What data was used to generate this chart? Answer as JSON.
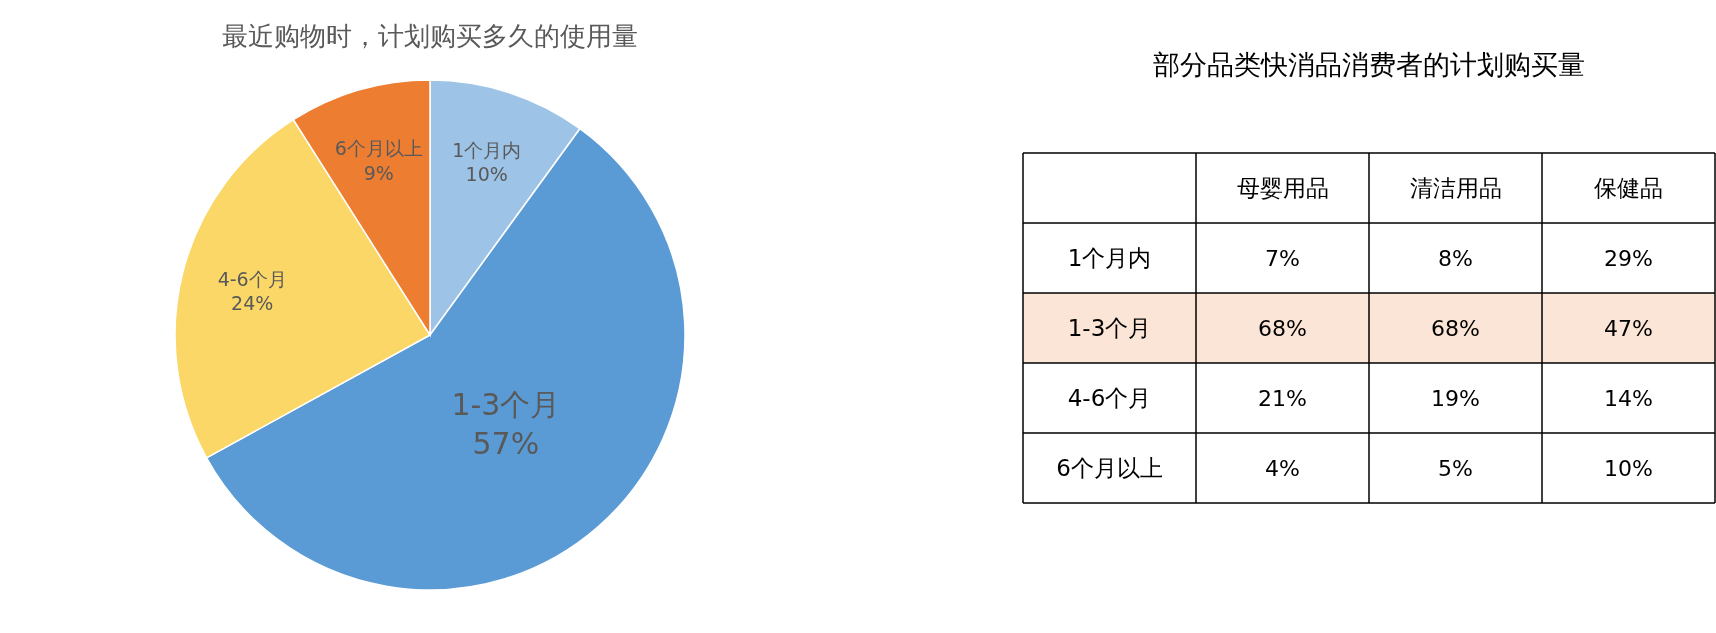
{
  "chart_data": [
    {
      "type": "pie",
      "title": "最近购物时，计划购买多久的使用量",
      "categories": [
        "1个月内",
        "1-3个月",
        "4-6个月",
        "6个月以上"
      ],
      "values": [
        10,
        57,
        24,
        9
      ],
      "colors": [
        "#9dc3e6",
        "#5b9bd5",
        "#fad766",
        "#ed7d31"
      ],
      "value_labels": [
        "10%",
        "57%",
        "24%",
        "9%"
      ]
    },
    {
      "type": "heatmap",
      "title": "部分品类快消品消费者的计划购买量",
      "categories": [
        "母婴用品",
        "清洁用品",
        "保健品"
      ],
      "y_categories": [
        "1个月内",
        "1-3个月",
        "4-6个月",
        "6个月以上"
      ],
      "cells": [
        [
          7,
          8,
          29
        ],
        [
          68,
          68,
          47
        ],
        [
          21,
          19,
          14
        ],
        [
          4,
          5,
          10
        ]
      ],
      "cell_labels": [
        [
          "7%",
          "8%",
          "29%"
        ],
        [
          "68%",
          "68%",
          "47%"
        ],
        [
          "21%",
          "19%",
          "14%"
        ],
        [
          "4%",
          "5%",
          "10%"
        ]
      ],
      "bands": [
        {
          "axis": "y",
          "from": "1-3个月",
          "to": "1-3个月",
          "color": "#fbe5d6"
        }
      ]
    }
  ]
}
